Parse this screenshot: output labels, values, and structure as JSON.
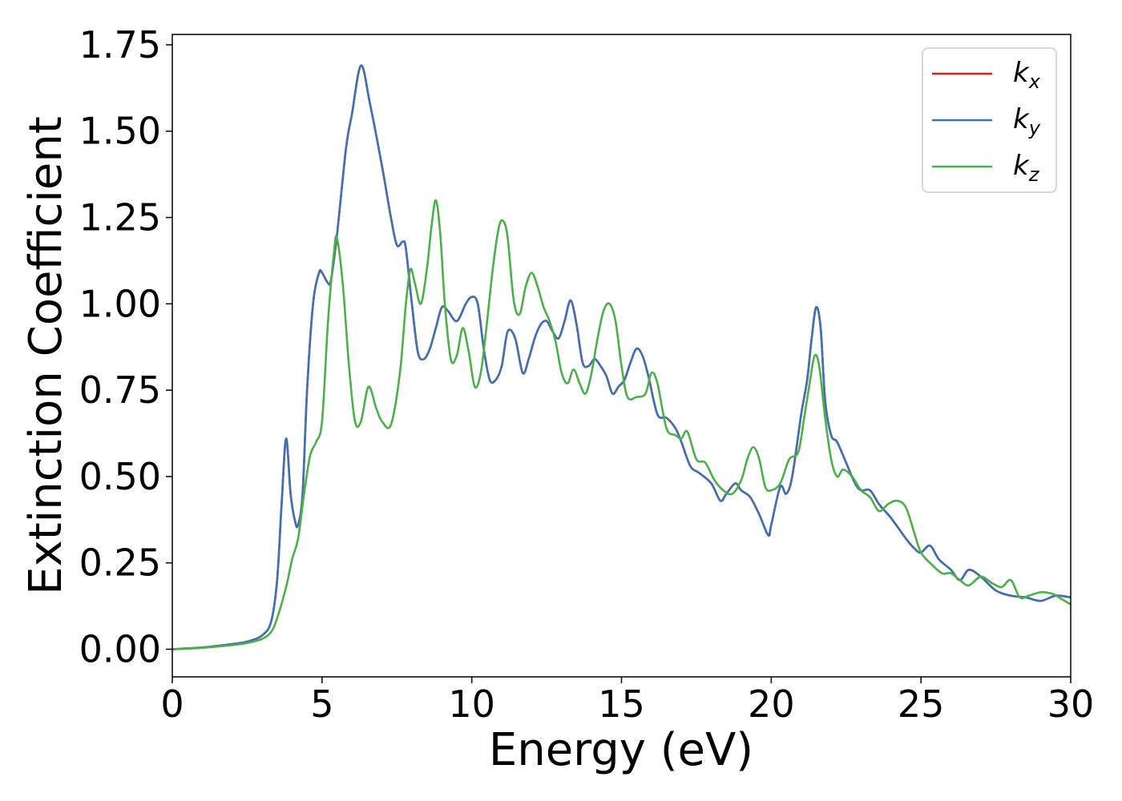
{
  "chart_data": {
    "type": "line",
    "xlabel": "Energy (eV)",
    "ylabel": "Extinction Coefficient",
    "xlim": [
      0,
      30
    ],
    "ylim": [
      -0.08,
      1.78
    ],
    "xticks": [
      0,
      5,
      10,
      15,
      20,
      25,
      30
    ],
    "xtick_labels": [
      "0",
      "5",
      "10",
      "15",
      "20",
      "25",
      "30"
    ],
    "yticks": [
      0.0,
      0.25,
      0.5,
      0.75,
      1.0,
      1.25,
      1.5,
      1.75
    ],
    "ytick_labels": [
      "0.00",
      "0.25",
      "0.50",
      "0.75",
      "1.00",
      "1.25",
      "1.50",
      "1.75"
    ],
    "grid": false,
    "legend_position": "top-right",
    "series": [
      {
        "name": "k_x",
        "label_main": "k",
        "label_sub": "x",
        "color": "#e41a1c",
        "x": [
          0,
          1,
          2,
          2.5,
          3,
          3.3,
          3.5,
          3.65,
          3.8,
          3.95,
          4.1,
          4.2,
          4.35,
          4.5,
          4.7,
          4.9,
          5.0,
          5.2,
          5.3,
          5.5,
          5.8,
          6.0,
          6.3,
          6.6,
          7.0,
          7.3,
          7.5,
          7.7,
          7.8,
          8.0,
          8.2,
          8.4,
          8.6,
          8.8,
          9.0,
          9.2,
          9.5,
          9.8,
          10.0,
          10.2,
          10.4,
          10.6,
          10.8,
          11.0,
          11.2,
          11.45,
          11.7,
          11.9,
          12.1,
          12.3,
          12.5,
          12.7,
          12.9,
          13.1,
          13.3,
          13.5,
          13.7,
          13.9,
          14.1,
          14.3,
          14.5,
          14.7,
          14.9,
          15.1,
          15.3,
          15.5,
          15.7,
          15.9,
          16.2,
          16.5,
          16.8,
          17.0,
          17.3,
          17.6,
          18.0,
          18.3,
          18.5,
          18.8,
          19.0,
          19.3,
          19.6,
          19.9,
          20.0,
          20.3,
          20.5,
          20.7,
          21.0,
          21.2,
          21.35,
          21.5,
          21.65,
          21.8,
          22.0,
          22.2,
          22.5,
          22.8,
          23.0,
          23.3,
          23.6,
          24.0,
          24.5,
          24.8,
          25.0,
          25.3,
          25.6,
          26.0,
          26.3,
          26.6,
          27.0,
          27.5,
          28.0,
          28.5,
          29.0,
          29.5,
          30.0
        ],
        "y": [
          0.0,
          0.005,
          0.015,
          0.022,
          0.04,
          0.08,
          0.2,
          0.42,
          0.61,
          0.45,
          0.37,
          0.36,
          0.45,
          0.75,
          1.0,
          1.09,
          1.09,
          1.06,
          1.07,
          1.2,
          1.45,
          1.55,
          1.69,
          1.58,
          1.4,
          1.25,
          1.17,
          1.18,
          1.16,
          1.0,
          0.86,
          0.84,
          0.87,
          0.93,
          0.99,
          0.98,
          0.95,
          1.0,
          1.02,
          1.0,
          0.87,
          0.78,
          0.78,
          0.82,
          0.92,
          0.9,
          0.8,
          0.84,
          0.9,
          0.94,
          0.95,
          0.92,
          0.9,
          0.95,
          1.01,
          0.94,
          0.83,
          0.82,
          0.84,
          0.82,
          0.79,
          0.74,
          0.76,
          0.78,
          0.83,
          0.87,
          0.85,
          0.79,
          0.68,
          0.67,
          0.64,
          0.6,
          0.53,
          0.51,
          0.48,
          0.43,
          0.45,
          0.48,
          0.46,
          0.44,
          0.39,
          0.33,
          0.36,
          0.47,
          0.45,
          0.5,
          0.68,
          0.78,
          0.9,
          0.99,
          0.93,
          0.72,
          0.62,
          0.6,
          0.54,
          0.48,
          0.46,
          0.46,
          0.42,
          0.38,
          0.32,
          0.29,
          0.28,
          0.3,
          0.26,
          0.23,
          0.2,
          0.23,
          0.21,
          0.17,
          0.155,
          0.15,
          0.14,
          0.155,
          0.15
        ]
      },
      {
        "name": "k_y",
        "label_main": "k",
        "label_sub": "y",
        "color": "#3f72b3",
        "x": [
          0,
          1,
          2,
          2.5,
          3,
          3.3,
          3.5,
          3.65,
          3.8,
          3.95,
          4.1,
          4.2,
          4.35,
          4.5,
          4.7,
          4.9,
          5.0,
          5.2,
          5.3,
          5.5,
          5.8,
          6.0,
          6.3,
          6.6,
          7.0,
          7.3,
          7.5,
          7.7,
          7.8,
          8.0,
          8.2,
          8.4,
          8.6,
          8.8,
          9.0,
          9.2,
          9.5,
          9.8,
          10.0,
          10.2,
          10.4,
          10.6,
          10.8,
          11.0,
          11.2,
          11.45,
          11.7,
          11.9,
          12.1,
          12.3,
          12.5,
          12.7,
          12.9,
          13.1,
          13.3,
          13.5,
          13.7,
          13.9,
          14.1,
          14.3,
          14.5,
          14.7,
          14.9,
          15.1,
          15.3,
          15.5,
          15.7,
          15.9,
          16.2,
          16.5,
          16.8,
          17.0,
          17.3,
          17.6,
          18.0,
          18.3,
          18.5,
          18.8,
          19.0,
          19.3,
          19.6,
          19.9,
          20.0,
          20.3,
          20.5,
          20.7,
          21.0,
          21.2,
          21.35,
          21.5,
          21.65,
          21.8,
          22.0,
          22.2,
          22.5,
          22.8,
          23.0,
          23.3,
          23.6,
          24.0,
          24.5,
          24.8,
          25.0,
          25.3,
          25.6,
          26.0,
          26.3,
          26.6,
          27.0,
          27.5,
          28.0,
          28.5,
          29.0,
          29.5,
          30.0
        ],
        "y": [
          0.0,
          0.005,
          0.015,
          0.022,
          0.04,
          0.08,
          0.2,
          0.42,
          0.61,
          0.45,
          0.37,
          0.36,
          0.45,
          0.75,
          1.0,
          1.09,
          1.09,
          1.06,
          1.07,
          1.2,
          1.45,
          1.55,
          1.69,
          1.58,
          1.4,
          1.25,
          1.17,
          1.18,
          1.16,
          1.0,
          0.86,
          0.84,
          0.87,
          0.93,
          0.99,
          0.98,
          0.95,
          1.0,
          1.02,
          1.0,
          0.87,
          0.78,
          0.78,
          0.82,
          0.92,
          0.9,
          0.8,
          0.84,
          0.9,
          0.94,
          0.95,
          0.92,
          0.9,
          0.95,
          1.01,
          0.94,
          0.83,
          0.82,
          0.84,
          0.82,
          0.79,
          0.74,
          0.76,
          0.78,
          0.83,
          0.87,
          0.85,
          0.79,
          0.68,
          0.67,
          0.64,
          0.6,
          0.53,
          0.51,
          0.48,
          0.43,
          0.45,
          0.48,
          0.46,
          0.44,
          0.39,
          0.33,
          0.36,
          0.47,
          0.45,
          0.5,
          0.68,
          0.78,
          0.9,
          0.99,
          0.93,
          0.72,
          0.62,
          0.6,
          0.54,
          0.48,
          0.46,
          0.46,
          0.42,
          0.38,
          0.32,
          0.29,
          0.28,
          0.3,
          0.26,
          0.23,
          0.2,
          0.23,
          0.21,
          0.17,
          0.155,
          0.15,
          0.14,
          0.155,
          0.15
        ]
      },
      {
        "name": "k_z",
        "label_main": "k",
        "label_sub": "z",
        "color": "#4daf4a",
        "x": [
          0,
          1,
          2,
          2.5,
          3,
          3.3,
          3.5,
          3.8,
          4.0,
          4.2,
          4.4,
          4.6,
          4.8,
          5.0,
          5.2,
          5.4,
          5.5,
          5.7,
          5.9,
          6.1,
          6.3,
          6.55,
          6.8,
          7.0,
          7.3,
          7.6,
          7.8,
          7.95,
          8.1,
          8.3,
          8.5,
          8.65,
          8.8,
          8.95,
          9.1,
          9.3,
          9.5,
          9.7,
          9.9,
          10.1,
          10.3,
          10.5,
          10.7,
          10.9,
          11.05,
          11.2,
          11.4,
          11.6,
          11.8,
          12.0,
          12.2,
          12.4,
          12.6,
          12.8,
          13.0,
          13.2,
          13.4,
          13.6,
          13.8,
          14.0,
          14.2,
          14.4,
          14.6,
          14.8,
          15.0,
          15.2,
          15.5,
          15.8,
          16.0,
          16.2,
          16.5,
          16.8,
          17.0,
          17.2,
          17.5,
          17.8,
          18.1,
          18.4,
          18.7,
          19.0,
          19.2,
          19.4,
          19.6,
          19.8,
          20.0,
          20.3,
          20.6,
          20.9,
          21.1,
          21.3,
          21.45,
          21.6,
          21.8,
          22.0,
          22.2,
          22.4,
          22.7,
          23.0,
          23.3,
          23.6,
          23.9,
          24.2,
          24.5,
          24.8,
          25.0,
          25.3,
          25.7,
          26.0,
          26.3,
          26.6,
          27.0,
          27.4,
          27.7,
          28.0,
          28.3,
          28.6,
          29.0,
          29.4,
          29.7,
          30.0
        ],
        "y": [
          0.0,
          0.004,
          0.012,
          0.018,
          0.03,
          0.05,
          0.09,
          0.18,
          0.26,
          0.32,
          0.45,
          0.56,
          0.6,
          0.66,
          0.95,
          1.15,
          1.19,
          1.05,
          0.82,
          0.66,
          0.66,
          0.76,
          0.7,
          0.66,
          0.65,
          0.8,
          1.0,
          1.1,
          1.06,
          1.0,
          1.1,
          1.22,
          1.3,
          1.2,
          1.0,
          0.84,
          0.85,
          0.93,
          0.86,
          0.76,
          0.8,
          0.94,
          1.1,
          1.22,
          1.24,
          1.19,
          1.01,
          0.97,
          1.05,
          1.09,
          1.05,
          0.99,
          0.95,
          0.89,
          0.8,
          0.77,
          0.81,
          0.77,
          0.74,
          0.8,
          0.9,
          0.98,
          1.0,
          0.95,
          0.82,
          0.73,
          0.73,
          0.74,
          0.8,
          0.77,
          0.64,
          0.62,
          0.61,
          0.63,
          0.55,
          0.54,
          0.49,
          0.46,
          0.45,
          0.49,
          0.55,
          0.585,
          0.55,
          0.47,
          0.46,
          0.48,
          0.55,
          0.57,
          0.67,
          0.78,
          0.85,
          0.82,
          0.67,
          0.55,
          0.5,
          0.52,
          0.5,
          0.46,
          0.44,
          0.4,
          0.42,
          0.43,
          0.41,
          0.33,
          0.28,
          0.25,
          0.22,
          0.22,
          0.2,
          0.185,
          0.21,
          0.19,
          0.18,
          0.2,
          0.15,
          0.155,
          0.165,
          0.16,
          0.145,
          0.13
        ]
      }
    ]
  }
}
